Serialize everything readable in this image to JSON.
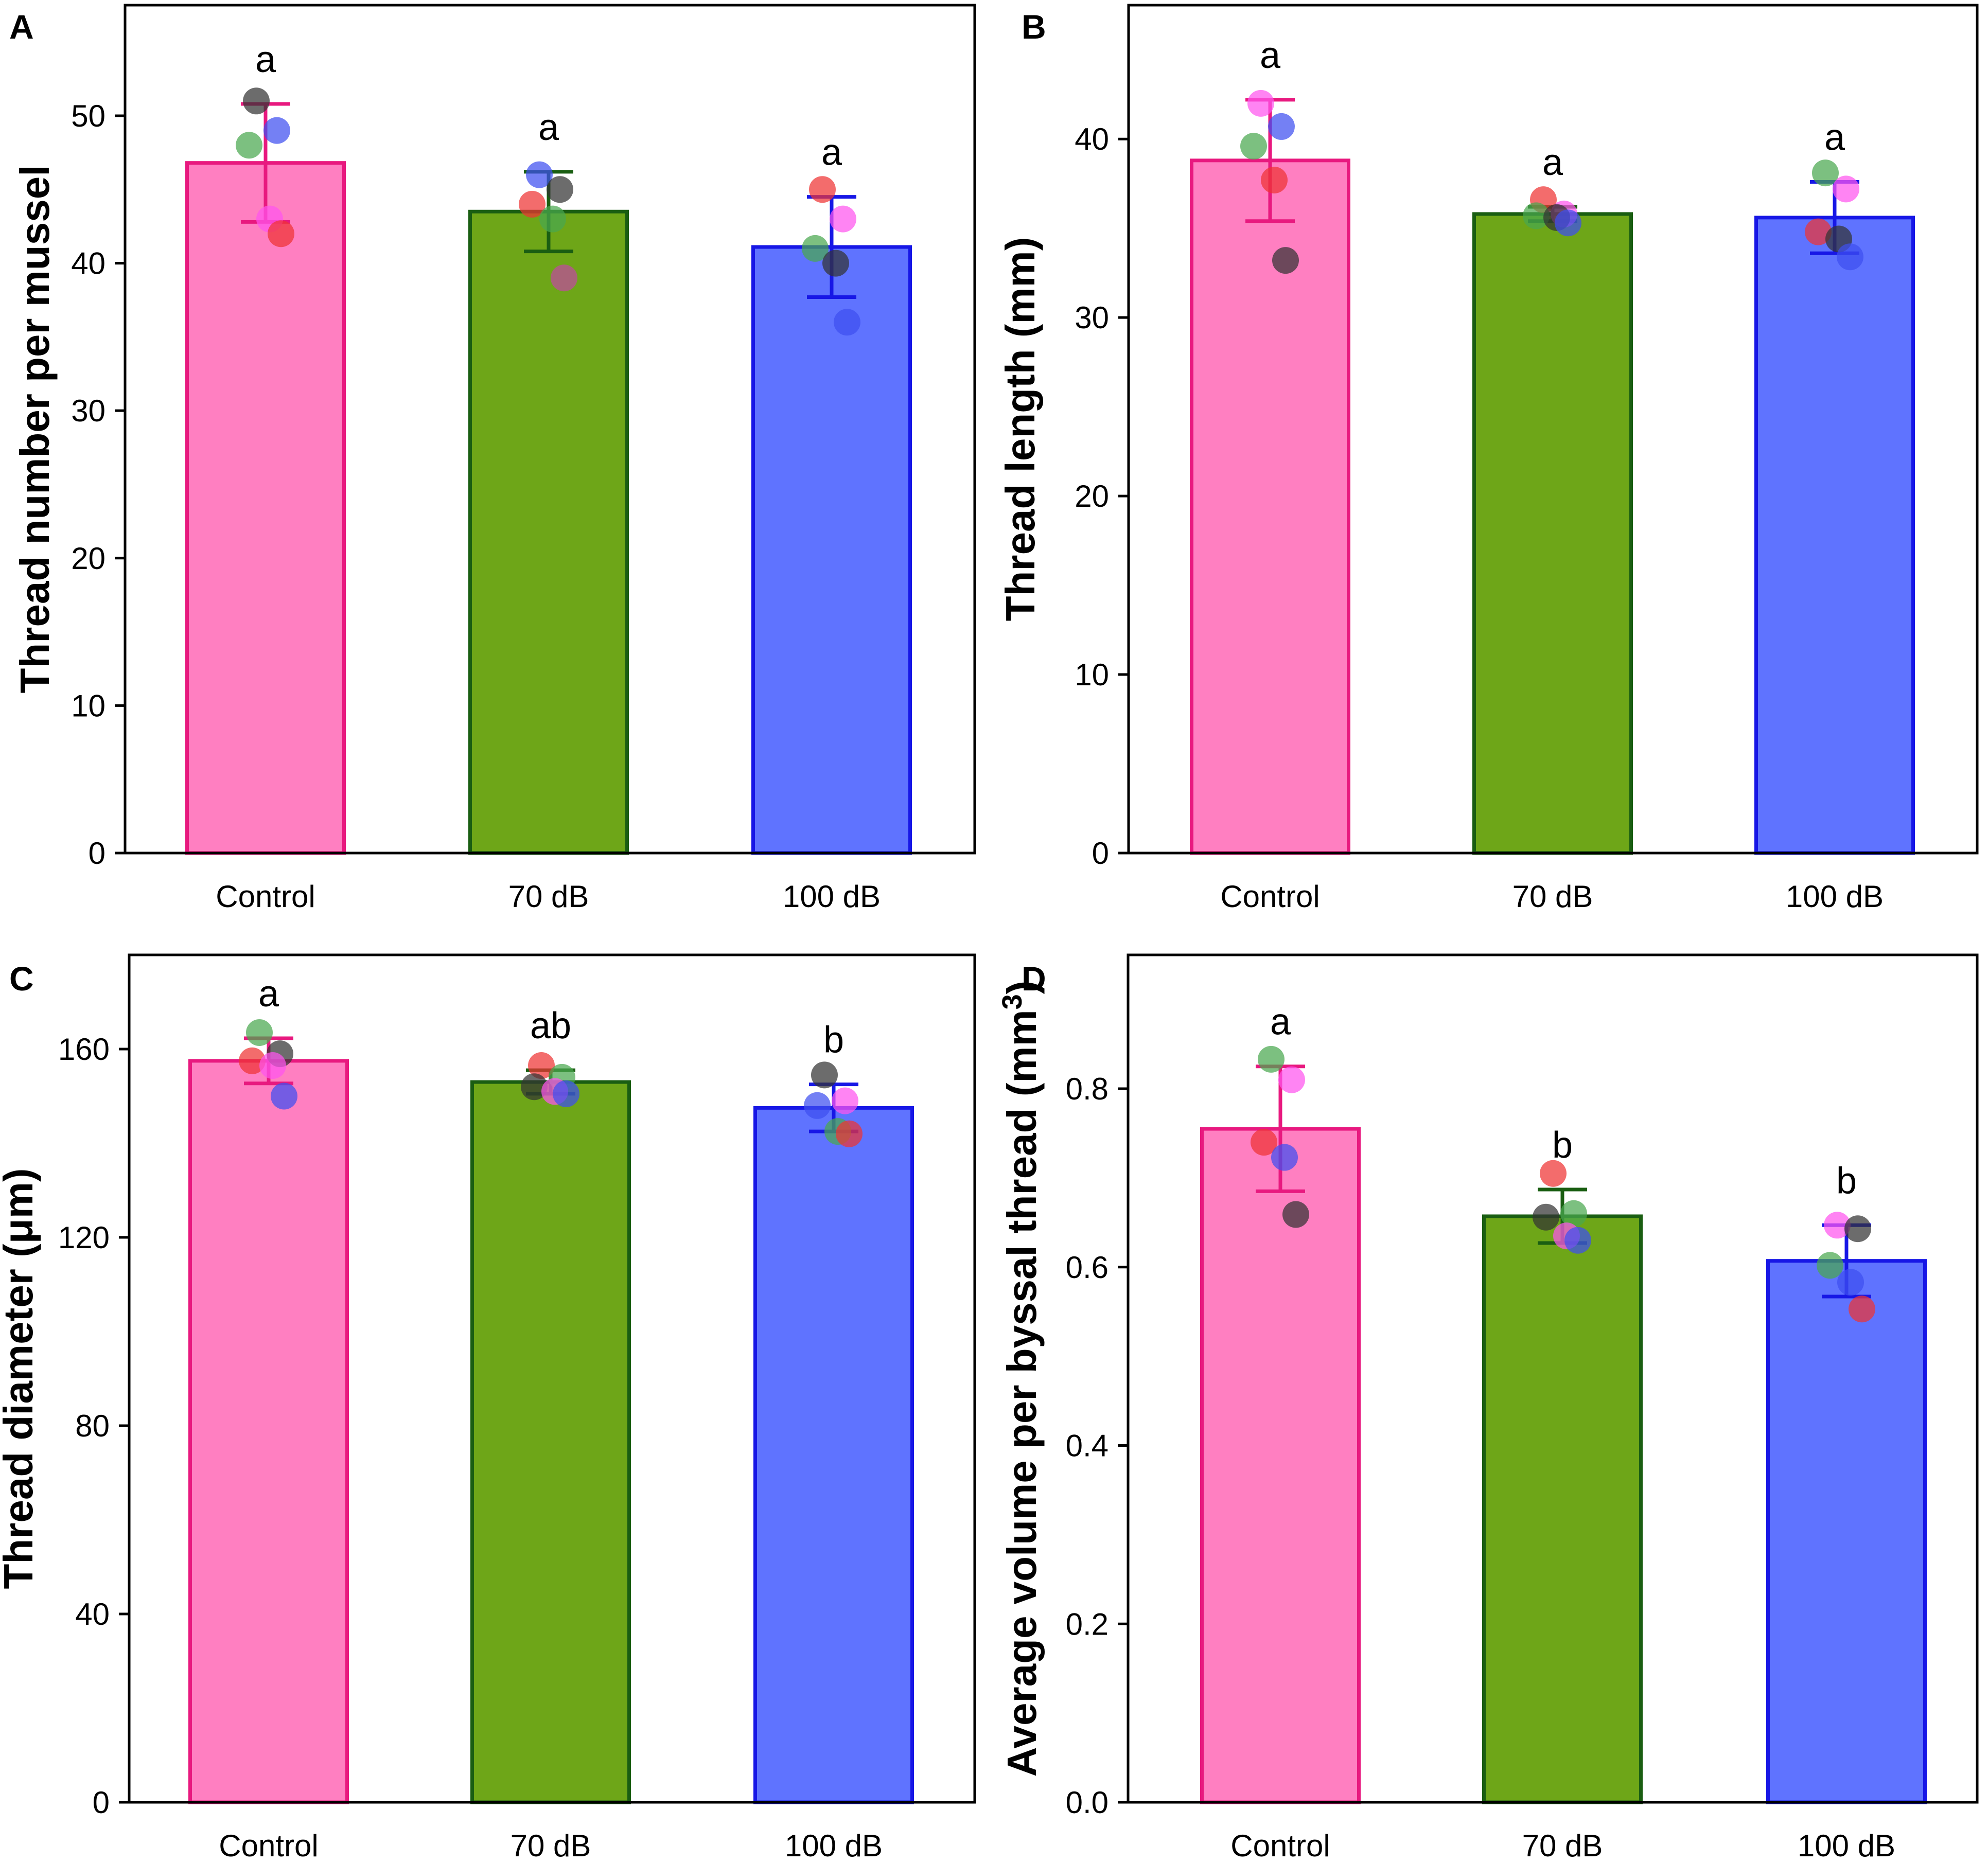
{
  "chart_data": [
    {
      "type": "bar",
      "panel": "A",
      "categories": [
        "Control",
        "70 dB",
        "100 dB"
      ],
      "values": [
        46.8,
        43.5,
        41.1
      ],
      "errors": [
        4.0,
        2.7,
        3.4
      ],
      "significance": [
        "a",
        "a",
        "a"
      ],
      "points": [
        [
          51,
          49,
          48,
          43,
          42
        ],
        [
          46,
          45,
          44,
          43,
          39
        ],
        [
          45,
          43,
          41,
          40,
          36
        ]
      ],
      "point_colors": [
        "#333333",
        "#3e4ff0",
        "#4aa84f",
        "#ff55ee",
        "#ee3333"
      ],
      "point_color_sets": [
        [
          "#333333",
          "#3e4ff0",
          "#4aa84f",
          "#ff55ee",
          "#ee3333"
        ],
        [
          "#3e4ff0",
          "#333333",
          "#ee3333",
          "#4aa84f",
          "#c04aa0"
        ],
        [
          "#ee3333",
          "#ff55ee",
          "#4aa84f",
          "#333333",
          "#3e4ff0"
        ]
      ],
      "xlabel": "",
      "ylabel": "Thread number per mussel",
      "ylim": [
        0,
        57.5
      ],
      "yticks": [
        0,
        10,
        20,
        30,
        40,
        50
      ],
      "ytick_labels": [
        "0",
        "10",
        "20",
        "30",
        "40",
        "50"
      ]
    },
    {
      "type": "bar",
      "panel": "B",
      "categories": [
        "Control",
        "70 dB",
        "100 dB"
      ],
      "values": [
        38.8,
        35.8,
        35.6
      ],
      "errors": [
        3.4,
        0.4,
        2.0
      ],
      "significance": [
        "a",
        "a",
        "a"
      ],
      "points": [
        [
          42,
          40.7,
          39.6,
          37.7,
          33.2
        ],
        [
          36.6,
          35.8,
          35.7,
          35.6,
          35.3
        ],
        [
          38.1,
          37.2,
          34.8,
          34.4,
          33.4
        ]
      ],
      "point_color_sets": [
        [
          "#ff55ee",
          "#3e4ff0",
          "#4aa84f",
          "#ee3333",
          "#333333"
        ],
        [
          "#ee3333",
          "#ff55ee",
          "#4aa84f",
          "#333333",
          "#3e4ff0"
        ],
        [
          "#4aa84f",
          "#ff55ee",
          "#ee3333",
          "#333333",
          "#3e4ff0"
        ]
      ],
      "xlabel": "",
      "ylabel": "Thread length (mm)",
      "ylim": [
        0,
        47.5
      ],
      "yticks": [
        0,
        10,
        20,
        30,
        40
      ],
      "ytick_labels": [
        "0",
        "10",
        "20",
        "30",
        "40"
      ]
    },
    {
      "type": "bar",
      "panel": "C",
      "categories": [
        "Control",
        "70 dB",
        "100 dB"
      ],
      "values": [
        157.5,
        153.0,
        147.5
      ],
      "errors": [
        4.8,
        2.5,
        5.0
      ],
      "significance": [
        "a",
        "ab",
        "b"
      ],
      "points": [
        [
          163.5,
          159,
          157.5,
          156.5,
          150
        ],
        [
          156.5,
          154,
          152,
          151,
          150.5
        ],
        [
          154.5,
          149,
          148,
          142.5,
          142
        ]
      ],
      "point_color_sets": [
        [
          "#4aa84f",
          "#333333",
          "#ee3333",
          "#ff55ee",
          "#3e4ff0"
        ],
        [
          "#ee3333",
          "#4aa84f",
          "#333333",
          "#ff55ee",
          "#3e4ff0"
        ],
        [
          "#333333",
          "#ff55ee",
          "#3e4ff0",
          "#4aa84f",
          "#ee3333"
        ]
      ],
      "xlabel": "",
      "ylabel": "Thread diameter  (μm)",
      "ylim": [
        0,
        180
      ],
      "yticks": [
        0,
        40,
        80,
        120,
        160
      ],
      "ytick_labels": [
        "0",
        "40",
        "80",
        "120",
        "160"
      ]
    },
    {
      "type": "bar",
      "panel": "D",
      "categories": [
        "Control",
        "70 dB",
        "100 dB"
      ],
      "values": [
        0.755,
        0.657,
        0.607
      ],
      "errors": [
        0.07,
        0.03,
        0.04
      ],
      "significance": [
        "a",
        "b",
        "b"
      ],
      "points": [
        [
          0.833,
          0.81,
          0.74,
          0.723,
          0.659
        ],
        [
          0.705,
          0.66,
          0.656,
          0.635,
          0.63
        ],
        [
          0.647,
          0.643,
          0.602,
          0.583,
          0.553
        ]
      ],
      "point_color_sets": [
        [
          "#4aa84f",
          "#ff55ee",
          "#ee3333",
          "#3e4ff0",
          "#333333"
        ],
        [
          "#ee3333",
          "#4aa84f",
          "#333333",
          "#ff55ee",
          "#3e4ff0"
        ],
        [
          "#ff55ee",
          "#333333",
          "#4aa84f",
          "#3e4ff0",
          "#ee3333"
        ]
      ],
      "xlabel": "",
      "ylabel": "Average volume per byssal thread (mm³)",
      "ylim": [
        0,
        0.95
      ],
      "yticks": [
        0,
        0.2,
        0.4,
        0.6,
        0.8
      ],
      "ytick_labels": [
        "0.0",
        "0.2",
        "0.4",
        "0.6",
        "0.8"
      ]
    }
  ],
  "bar_colors": {
    "Control": {
      "fill": "#ff7fc1",
      "stroke": "#e8197f",
      "error": "#e8197f"
    },
    "70 dB": {
      "fill": "#6ea618",
      "stroke": "#1a5e12",
      "error": "#1a5e12"
    },
    "100 dB": {
      "fill": "#5f73ff",
      "stroke": "#1717e6",
      "error": "#1717e6"
    }
  }
}
